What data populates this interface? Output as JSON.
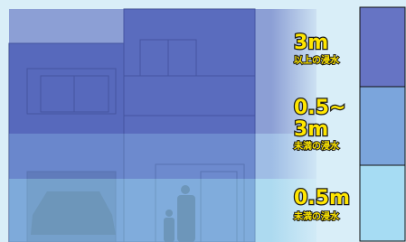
{
  "labels": [
    {
      "lines": [
        "3m"
      ],
      "note": "以上の浸水"
    },
    {
      "lines": [
        "0.5~",
        "3m"
      ],
      "note": "未満の浸水"
    },
    {
      "lines": [
        "0.5m"
      ],
      "note": "未満の浸水"
    }
  ]
}
